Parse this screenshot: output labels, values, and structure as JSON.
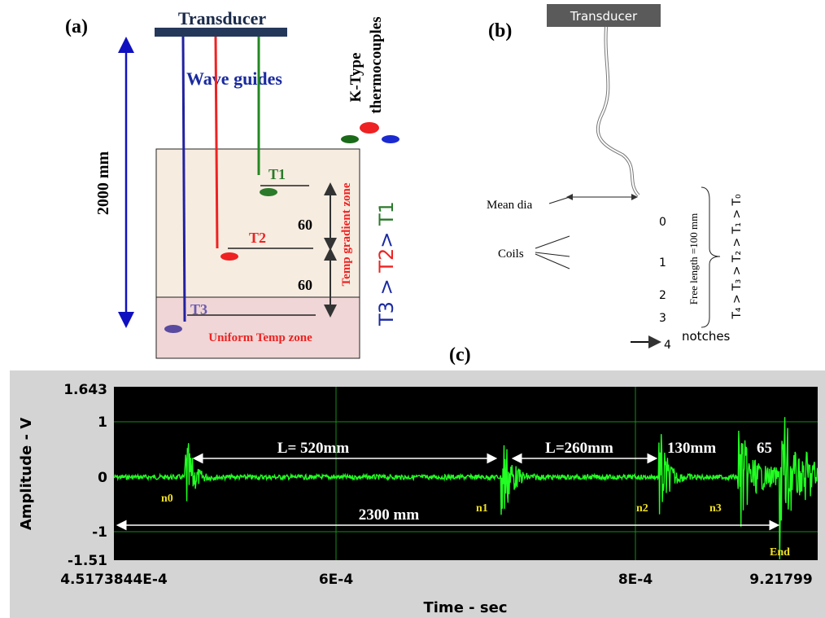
{
  "panel_a": {
    "label": "(a)",
    "transducer": "Transducer",
    "length": "2000 mm",
    "wave_guides": "Wave guides",
    "thermocouples": [
      "K-Type",
      "thermocouples"
    ],
    "t1": "T1",
    "t2": "T2",
    "t3": "T3",
    "spacing_1": "60",
    "spacing_2": "60",
    "gradient_zone": "Temp gradient zone",
    "uniform_zone": "Uniform Temp zone",
    "order": [
      "T3",
      " > ",
      "T2",
      "> ",
      "T1"
    ]
  },
  "panel_b": {
    "label": "(b)",
    "transducer": "Transducer",
    "mean_dia": "Mean dia",
    "coils": "Coils",
    "notch_numbers": [
      "0",
      "1",
      "2",
      "3",
      "4"
    ],
    "notches": "notches",
    "free_length": "Free length =100 mm",
    "order": "T₄ > T₃ > T₂ > T₁ > T₀"
  },
  "panel_c": {
    "label": "(c)",
    "y_axis_title": "Amplitude - V",
    "x_axis_title": "Time - sec",
    "y_ticks": [
      "1.643",
      "1",
      "0",
      "-1",
      "-1.51"
    ],
    "x_ticks": [
      "4.5173844E-4",
      "6E-4",
      "8E-4",
      "9.21799"
    ],
    "spans": [
      "L= 520mm",
      "L=260mm",
      "130mm",
      "65",
      "2300 mm"
    ],
    "echoes": [
      "n0",
      "n1",
      "n2",
      "n3",
      "End"
    ]
  }
}
